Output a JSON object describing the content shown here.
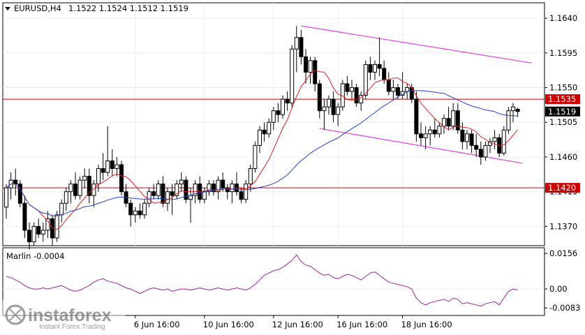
{
  "header": {
    "symbol": "EURUSD,H4",
    "ohlc": "1.1522 1.1524 1.1512 1.1519"
  },
  "watermark": {
    "brand": "instaforex",
    "tagline": "Instant Forex Trading"
  },
  "price_axis": {
    "ticks": [
      "1.1640",
      "1.1595",
      "1.1550",
      "1.1505",
      "1.1460",
      "1.1415",
      "1.1370"
    ],
    "level_labels": [
      "1.1535",
      "1.1420"
    ],
    "current_label": "1.1519"
  },
  "time_axis": {
    "labels": [
      "6 Jun 16:00",
      "10 Jun 16:00",
      "12 Jun 16:00",
      "16 Jun 16:00",
      "18 Jun 16:00"
    ]
  },
  "indicator": {
    "label": "Marlin -0.0004",
    "ticks": [
      "0.0156",
      "0.00",
      "-0.0083"
    ]
  },
  "colors": {
    "bull": "#ffffff",
    "bear": "#000000",
    "ma_fast": "#dc2020",
    "ma_slow": "#1f3fd0",
    "channel": "#e040e0",
    "level": "#cc0000",
    "oscillator": "#a020a0"
  },
  "chart_data": {
    "type": "candlestick",
    "price_range": [
      1.1345,
      1.166
    ],
    "horizontal_levels": [
      1.1535,
      1.142
    ],
    "channel": {
      "upper": [
        {
          "bar": 64,
          "price": 1.163
        },
        {
          "bar": 114,
          "price": 1.1582
        }
      ],
      "lower": [
        {
          "bar": 68,
          "price": 1.1497
        },
        {
          "bar": 112,
          "price": 1.1452
        }
      ]
    },
    "ohlc": [
      [
        1.1395,
        1.1425,
        1.138,
        1.142
      ],
      [
        1.142,
        1.144,
        1.1405,
        1.143
      ],
      [
        1.143,
        1.1445,
        1.141,
        1.1425
      ],
      [
        1.1425,
        1.143,
        1.1395,
        1.14
      ],
      [
        1.14,
        1.141,
        1.1355,
        1.1365
      ],
      [
        1.1365,
        1.1375,
        1.134,
        1.135
      ],
      [
        1.135,
        1.1375,
        1.1345,
        1.137
      ],
      [
        1.137,
        1.138,
        1.1355,
        1.136
      ],
      [
        1.136,
        1.1375,
        1.135,
        1.1365
      ],
      [
        1.1365,
        1.139,
        1.1355,
        1.138
      ],
      [
        1.138,
        1.1385,
        1.1345,
        1.1355
      ],
      [
        1.1355,
        1.139,
        1.135,
        1.1385
      ],
      [
        1.1385,
        1.1405,
        1.1375,
        1.14
      ],
      [
        1.14,
        1.142,
        1.139,
        1.1415
      ],
      [
        1.1415,
        1.143,
        1.14,
        1.1425
      ],
      [
        1.1425,
        1.144,
        1.1405,
        1.141
      ],
      [
        1.141,
        1.1435,
        1.1405,
        1.143
      ],
      [
        1.143,
        1.1445,
        1.142,
        1.1435
      ],
      [
        1.1435,
        1.1445,
        1.14,
        1.141
      ],
      [
        1.141,
        1.143,
        1.1395,
        1.1425
      ],
      [
        1.1425,
        1.145,
        1.1415,
        1.1445
      ],
      [
        1.1445,
        1.1465,
        1.143,
        1.144
      ],
      [
        1.144,
        1.15,
        1.1435,
        1.1455
      ],
      [
        1.1455,
        1.147,
        1.1435,
        1.1445
      ],
      [
        1.1445,
        1.146,
        1.1435,
        1.145
      ],
      [
        1.145,
        1.1455,
        1.141,
        1.1415
      ],
      [
        1.1415,
        1.1425,
        1.1395,
        1.14
      ],
      [
        1.14,
        1.1405,
        1.137,
        1.1385
      ],
      [
        1.1385,
        1.1395,
        1.1375,
        1.139
      ],
      [
        1.139,
        1.14,
        1.138,
        1.1385
      ],
      [
        1.1385,
        1.1405,
        1.138,
        1.14
      ],
      [
        1.14,
        1.142,
        1.1395,
        1.1415
      ],
      [
        1.1415,
        1.1425,
        1.1405,
        1.141
      ],
      [
        1.141,
        1.143,
        1.1405,
        1.1425
      ],
      [
        1.1425,
        1.1435,
        1.1395,
        1.14
      ],
      [
        1.14,
        1.142,
        1.139,
        1.1415
      ],
      [
        1.1415,
        1.1425,
        1.1385,
        1.141
      ],
      [
        1.141,
        1.143,
        1.1405,
        1.1425
      ],
      [
        1.1425,
        1.144,
        1.1415,
        1.143
      ],
      [
        1.143,
        1.1435,
        1.14,
        1.1405
      ],
      [
        1.1405,
        1.142,
        1.1375,
        1.141
      ],
      [
        1.141,
        1.143,
        1.14,
        1.1425
      ],
      [
        1.1425,
        1.1435,
        1.14,
        1.1405
      ],
      [
        1.1405,
        1.142,
        1.14,
        1.1415
      ],
      [
        1.1415,
        1.143,
        1.141,
        1.1425
      ],
      [
        1.1425,
        1.143,
        1.141,
        1.1415
      ],
      [
        1.1415,
        1.1435,
        1.1405,
        1.143
      ],
      [
        1.143,
        1.144,
        1.1415,
        1.142
      ],
      [
        1.142,
        1.1425,
        1.1405,
        1.1415
      ],
      [
        1.1415,
        1.143,
        1.14,
        1.1425
      ],
      [
        1.1425,
        1.144,
        1.141,
        1.1415
      ],
      [
        1.1415,
        1.142,
        1.14,
        1.1405
      ],
      [
        1.1405,
        1.143,
        1.14,
        1.1425
      ],
      [
        1.1425,
        1.145,
        1.1415,
        1.1445
      ],
      [
        1.1445,
        1.148,
        1.144,
        1.1475
      ],
      [
        1.1475,
        1.15,
        1.1465,
        1.1495
      ],
      [
        1.1495,
        1.1505,
        1.148,
        1.149
      ],
      [
        1.149,
        1.151,
        1.1485,
        1.1505
      ],
      [
        1.1505,
        1.1525,
        1.1495,
        1.152
      ],
      [
        1.152,
        1.153,
        1.1505,
        1.1515
      ],
      [
        1.1515,
        1.154,
        1.151,
        1.1535
      ],
      [
        1.1535,
        1.1545,
        1.152,
        1.153
      ],
      [
        1.153,
        1.1605,
        1.1525,
        1.16
      ],
      [
        1.16,
        1.163,
        1.157,
        1.1615
      ],
      [
        1.1615,
        1.1625,
        1.158,
        1.159
      ],
      [
        1.159,
        1.16,
        1.1555,
        1.157
      ],
      [
        1.157,
        1.159,
        1.1555,
        1.1585
      ],
      [
        1.1585,
        1.159,
        1.1545,
        1.1555
      ],
      [
        1.1555,
        1.156,
        1.151,
        1.152
      ],
      [
        1.152,
        1.1535,
        1.1495,
        1.1525
      ],
      [
        1.1525,
        1.154,
        1.1515,
        1.1535
      ],
      [
        1.1535,
        1.1545,
        1.1505,
        1.1515
      ],
      [
        1.1515,
        1.153,
        1.15,
        1.1525
      ],
      [
        1.1525,
        1.156,
        1.152,
        1.1555
      ],
      [
        1.1555,
        1.1565,
        1.154,
        1.1545
      ],
      [
        1.1545,
        1.156,
        1.1535,
        1.155
      ],
      [
        1.155,
        1.1555,
        1.1525,
        1.153
      ],
      [
        1.153,
        1.1545,
        1.152,
        1.154
      ],
      [
        1.154,
        1.1585,
        1.1535,
        1.158
      ],
      [
        1.158,
        1.159,
        1.156,
        1.157
      ],
      [
        1.157,
        1.1585,
        1.156,
        1.158
      ],
      [
        1.158,
        1.1615,
        1.1565,
        1.1575
      ],
      [
        1.1575,
        1.1585,
        1.1555,
        1.156
      ],
      [
        1.156,
        1.157,
        1.154,
        1.1545
      ],
      [
        1.1545,
        1.156,
        1.1535,
        1.155
      ],
      [
        1.155,
        1.1555,
        1.1535,
        1.154
      ],
      [
        1.154,
        1.157,
        1.1535,
        1.1545
      ],
      [
        1.1545,
        1.1555,
        1.1535,
        1.155
      ],
      [
        1.155,
        1.1555,
        1.153,
        1.1535
      ],
      [
        1.1535,
        1.1545,
        1.148,
        1.149
      ],
      [
        1.149,
        1.1505,
        1.1475,
        1.1485
      ],
      [
        1.1485,
        1.15,
        1.147,
        1.149
      ],
      [
        1.149,
        1.15,
        1.1475,
        1.1495
      ],
      [
        1.1495,
        1.151,
        1.1485,
        1.149
      ],
      [
        1.149,
        1.1505,
        1.1485,
        1.15
      ],
      [
        1.15,
        1.1515,
        1.149,
        1.151
      ],
      [
        1.151,
        1.1525,
        1.1495,
        1.15
      ],
      [
        1.15,
        1.153,
        1.1495,
        1.152
      ],
      [
        1.152,
        1.153,
        1.149,
        1.1495
      ],
      [
        1.1495,
        1.1505,
        1.147,
        1.148
      ],
      [
        1.148,
        1.1495,
        1.147,
        1.149
      ],
      [
        1.149,
        1.1495,
        1.1465,
        1.1475
      ],
      [
        1.1475,
        1.149,
        1.146,
        1.147
      ],
      [
        1.147,
        1.148,
        1.145,
        1.146
      ],
      [
        1.146,
        1.148,
        1.1455,
        1.1475
      ],
      [
        1.1475,
        1.1485,
        1.1465,
        1.148
      ],
      [
        1.148,
        1.1495,
        1.147,
        1.1485
      ],
      [
        1.1485,
        1.149,
        1.146,
        1.1465
      ],
      [
        1.1465,
        1.15,
        1.1462,
        1.1495
      ],
      [
        1.1495,
        1.1525,
        1.149,
        1.152
      ],
      [
        1.152,
        1.153,
        1.1505,
        1.1525
      ],
      [
        1.1522,
        1.1524,
        1.1512,
        1.1519
      ]
    ],
    "oscillator": {
      "name": "Marlin",
      "range": [
        -0.011,
        0.0175
      ],
      "values": [
        0.0055,
        0.005,
        0.004,
        0.003,
        0.0015,
        0.0005,
        0.0,
        0.0,
        0.0005,
        0.0,
        0.0005,
        0.001,
        0.0015,
        0.0005,
        -0.0005,
        -0.001,
        -0.0005,
        0.0005,
        0.0015,
        0.003,
        0.004,
        0.0045,
        0.0035,
        0.003,
        0.0025,
        0.0015,
        0.0005,
        0.0,
        -0.001,
        -0.002,
        -0.001,
        0.0,
        0.0005,
        0.0,
        -0.0005,
        0.0,
        -0.001,
        -0.0005,
        0.0,
        0.0,
        -0.0005,
        0.0,
        0.0005,
        0.0,
        -0.0005,
        0.0,
        0.0005,
        0.0,
        -0.0005,
        0.0,
        0.0005,
        0.0,
        -0.0005,
        0.0005,
        0.002,
        0.004,
        0.006,
        0.007,
        0.008,
        0.0085,
        0.0095,
        0.011,
        0.0125,
        0.015,
        0.012,
        0.0105,
        0.01,
        0.0085,
        0.007,
        0.006,
        0.0065,
        0.005,
        0.0045,
        0.0055,
        0.0065,
        0.006,
        0.005,
        0.004,
        0.0055,
        0.007,
        0.0075,
        0.006,
        0.0045,
        0.003,
        0.0025,
        0.002,
        0.0015,
        0.001,
        0.0,
        -0.004,
        -0.006,
        -0.007,
        -0.006,
        -0.0055,
        -0.005,
        -0.0045,
        -0.0055,
        -0.004,
        -0.0045,
        -0.0065,
        -0.006,
        -0.0065,
        -0.007,
        -0.0075,
        -0.0065,
        -0.006,
        -0.0055,
        -0.007,
        -0.004,
        -0.001,
        0.0,
        -0.0004
      ]
    }
  }
}
